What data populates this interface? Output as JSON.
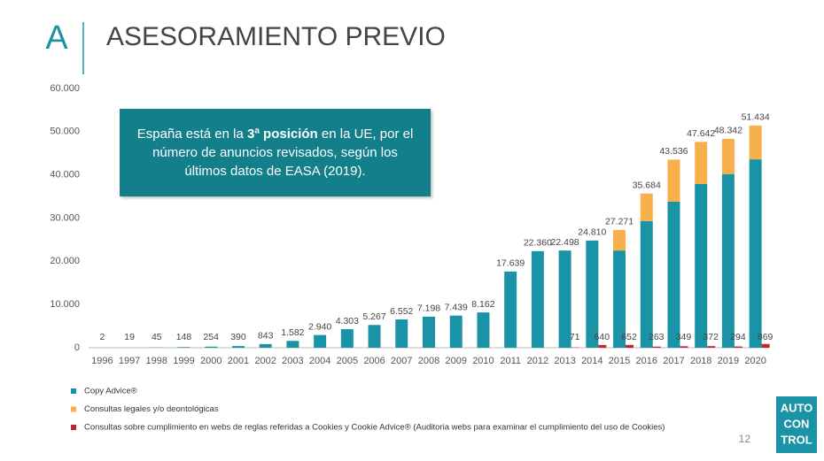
{
  "header": {
    "logo_letter": "A",
    "title": "ASESORAMIENTO PREVIO"
  },
  "callout": {
    "parts": [
      "España está en la ",
      "3ª posición",
      " en la UE, por el número de anuncios revisados, según los últimos datos de EASA (2019)."
    ]
  },
  "chart_data": {
    "type": "bar",
    "stacked": true,
    "categories": [
      "1996",
      "1997",
      "1998",
      "1999",
      "2000",
      "2001",
      "2002",
      "2003",
      "2004",
      "2005",
      "2006",
      "2007",
      "2008",
      "2009",
      "2010",
      "2011",
      "2012",
      "2013",
      "2014",
      "2015",
      "2016",
      "2017",
      "2018",
      "2019",
      "2020"
    ],
    "series": [
      {
        "name": "Copy Advice®",
        "color": "#1b93a7",
        "stack": "a",
        "values": [
          2,
          19,
          45,
          148,
          254,
          390,
          843,
          1582,
          2940,
          4303,
          5267,
          6552,
          7198,
          7439,
          8162,
          17639,
          22360,
          22498,
          24810,
          22500,
          29300,
          33800,
          37900,
          40200,
          43600
        ]
      },
      {
        "name": "Consultas legales y/o deontológicas",
        "color": "#f8b04c",
        "stack": "a",
        "values": [
          null,
          null,
          null,
          null,
          null,
          null,
          null,
          null,
          null,
          null,
          null,
          null,
          null,
          null,
          null,
          null,
          null,
          null,
          null,
          4771,
          6384,
          9736,
          9742,
          8142,
          7834
        ]
      },
      {
        "name": "Consultas sobre cumplimiento en webs de reglas referidas a Cookies y Cookie Advice® (Auditoria webs para examinar el cumplimiento del uso de Cookies)",
        "color": "#c1272d",
        "stack": "b",
        "values": [
          null,
          null,
          null,
          null,
          null,
          null,
          null,
          null,
          null,
          null,
          null,
          null,
          null,
          null,
          null,
          null,
          null,
          71,
          640,
          652,
          263,
          349,
          372,
          294,
          869
        ],
        "value_labels": [
          null,
          null,
          null,
          null,
          null,
          null,
          null,
          null,
          null,
          null,
          null,
          null,
          null,
          null,
          null,
          null,
          null,
          "71",
          "640",
          "652",
          "263",
          "349",
          "372",
          "294",
          "869"
        ]
      }
    ],
    "totals": {
      "values": [
        2,
        19,
        45,
        148,
        254,
        390,
        843,
        1582,
        2940,
        4303,
        5267,
        6552,
        7198,
        7439,
        8162,
        17639,
        22360,
        22498,
        24810,
        27271,
        35684,
        43536,
        47642,
        48342,
        51434
      ],
      "value_labels": [
        "2",
        "19",
        "45",
        "148",
        "254",
        "390",
        "843",
        "1.582",
        "2.940",
        "4.303",
        "5.267",
        "6.552",
        "7.198",
        "7.439",
        "8.162",
        "17.639",
        "22.360",
        "22.498",
        "24.810",
        "27.271",
        "35.684",
        "43.536",
        "47.642",
        "48.342",
        "51.434"
      ]
    },
    "ylim": [
      0,
      60000
    ],
    "yticks": [
      {
        "value": 0,
        "label": "0"
      },
      {
        "value": 10000,
        "label": "10.000"
      },
      {
        "value": 20000,
        "label": "20.000"
      },
      {
        "value": 30000,
        "label": "30.000"
      },
      {
        "value": 40000,
        "label": "40.000"
      },
      {
        "value": 50000,
        "label": "50.000"
      },
      {
        "value": 60000,
        "label": "60.000"
      }
    ],
    "grid": false
  },
  "footer": {
    "page_number": "12",
    "logo": [
      "AUTO",
      "CON",
      "TROL"
    ]
  }
}
